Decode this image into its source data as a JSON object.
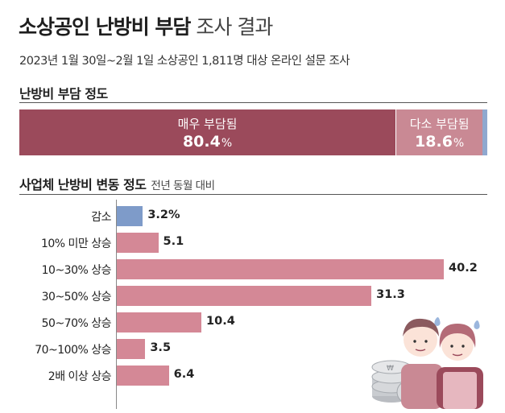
{
  "header": {
    "title_bold": "소상공인 난방비 부담",
    "title_light": "조사 결과",
    "subtitle": "2023년 1월 30일~2월 1일 소상공인 1,811명 대상 온라인 설문 조사"
  },
  "section1": {
    "title": "난방비 부담 정도"
  },
  "section2": {
    "title": "사업체 난방비 변동 정도",
    "note": "전년 동월 대비"
  },
  "colors": {
    "very": "#9b4a5b",
    "somewhat": "#c98994",
    "other": "#8fa8cf",
    "decrease_bar": "#7e9bc9",
    "increase_bar": "#d48896"
  },
  "chart_data": [
    {
      "type": "bar",
      "stacked": true,
      "orientation": "horizontal",
      "title": "난방비 부담 정도",
      "segments": [
        {
          "label": "매우 부담됨",
          "value": 80.4,
          "value_label": "80.4",
          "unit": "%"
        },
        {
          "label": "다소 부담됨",
          "value": 18.6,
          "value_label": "18.6",
          "unit": "%"
        },
        {
          "label": "",
          "value": 1.0,
          "value_label": "",
          "unit": ""
        }
      ]
    },
    {
      "type": "bar",
      "orientation": "horizontal",
      "title": "사업체 난방비 변동 정도",
      "subtitle": "전년 동월 대비",
      "xlim": [
        0,
        43
      ],
      "categories": [
        "감소",
        "10% 미만 상승",
        "10~30% 상승",
        "30~50% 상승",
        "50~70% 상승",
        "70~100% 상승",
        "2배 이상 상승"
      ],
      "values": [
        3.2,
        5.1,
        40.2,
        31.3,
        10.4,
        3.5,
        6.4
      ],
      "value_labels": [
        "3.2%",
        "5.1",
        "40.2",
        "31.3",
        "10.4",
        "3.5",
        "6.4"
      ]
    }
  ]
}
